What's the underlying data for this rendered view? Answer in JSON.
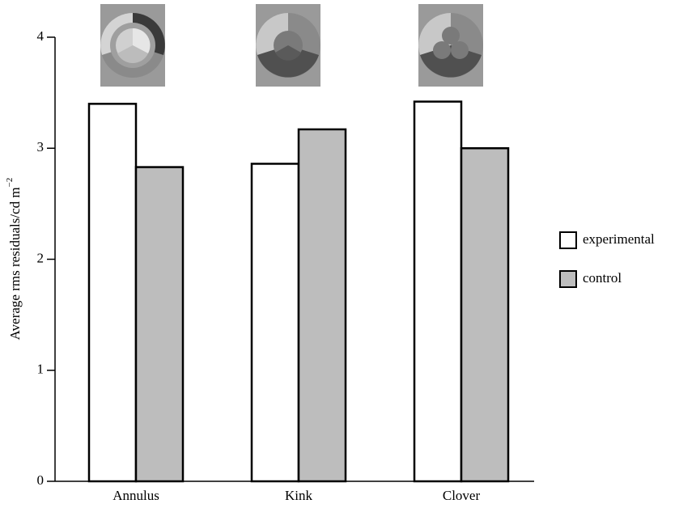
{
  "chart_data": {
    "type": "bar",
    "y_label": "Average rms residuals/cd m",
    "y_label_superscript": "−2",
    "categories": [
      "Annulus",
      "Kink",
      "Clover"
    ],
    "series": [
      {
        "name": "experimental",
        "color": "#ffffff",
        "values": [
          3.4,
          2.86,
          3.42
        ]
      },
      {
        "name": "control",
        "color": "#bdbdbd",
        "values": [
          2.83,
          3.17,
          3.0
        ]
      }
    ],
    "ylim": [
      0,
      4
    ],
    "yticks": [
      0,
      1,
      2,
      3,
      4
    ],
    "grid": false,
    "legend": "right"
  }
}
